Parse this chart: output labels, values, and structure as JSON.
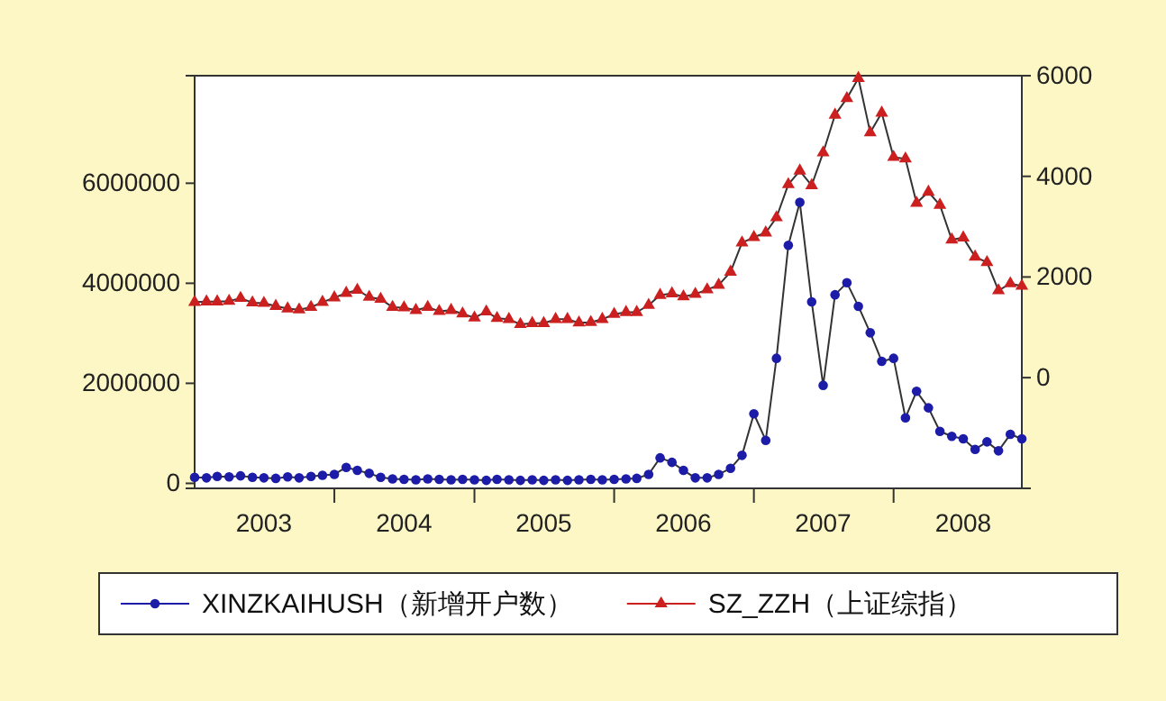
{
  "chart_data": {
    "type": "line",
    "x": [
      "2003-01",
      "2003-02",
      "2003-03",
      "2003-04",
      "2003-05",
      "2003-06",
      "2003-07",
      "2003-08",
      "2003-09",
      "2003-10",
      "2003-11",
      "2003-12",
      "2004-01",
      "2004-02",
      "2004-03",
      "2004-04",
      "2004-05",
      "2004-06",
      "2004-07",
      "2004-08",
      "2004-09",
      "2004-10",
      "2004-11",
      "2004-12",
      "2005-01",
      "2005-02",
      "2005-03",
      "2005-04",
      "2005-05",
      "2005-06",
      "2005-07",
      "2005-08",
      "2005-09",
      "2005-10",
      "2005-11",
      "2005-12",
      "2006-01",
      "2006-02",
      "2006-03",
      "2006-04",
      "2006-05",
      "2006-06",
      "2006-07",
      "2006-08",
      "2006-09",
      "2006-10",
      "2006-11",
      "2006-12",
      "2007-01",
      "2007-02",
      "2007-03",
      "2007-04",
      "2007-05",
      "2007-06",
      "2007-07",
      "2007-08",
      "2007-09",
      "2007-10",
      "2007-11",
      "2007-12",
      "2008-01",
      "2008-02",
      "2008-03",
      "2008-04",
      "2008-05",
      "2008-06",
      "2008-07",
      "2008-08",
      "2008-09",
      "2008-10",
      "2008-11",
      "2008-12"
    ],
    "series": [
      {
        "name": "XINZKAIHUSH（新增开户数）",
        "color": "#1c1ca8",
        "marker": "circle",
        "values": [
          120000,
          110000,
          140000,
          130000,
          150000,
          120000,
          110000,
          100000,
          130000,
          110000,
          140000,
          160000,
          180000,
          320000,
          260000,
          200000,
          120000,
          90000,
          80000,
          70000,
          90000,
          80000,
          70000,
          80000,
          70000,
          60000,
          80000,
          70000,
          60000,
          70000,
          60000,
          70000,
          60000,
          70000,
          80000,
          70000,
          80000,
          90000,
          100000,
          180000,
          510000,
          420000,
          260000,
          110000,
          110000,
          180000,
          300000,
          560000,
          1390000,
          860000,
          2500000,
          4760000,
          5620000,
          3630000,
          1960000,
          3770000,
          4010000,
          3540000,
          3010000,
          2440000,
          2500000,
          1310000,
          1840000,
          1510000,
          1040000,
          940000,
          890000,
          680000,
          830000,
          650000,
          980000,
          890000
        ]
      },
      {
        "name": "SZ_ZZH（上证综指）",
        "color": "#cc2020",
        "marker": "triangle",
        "axis": "y2",
        "values": [
          1500,
          1510,
          1510,
          1520,
          1580,
          1490,
          1480,
          1420,
          1370,
          1350,
          1400,
          1500,
          1590,
          1680,
          1740,
          1600,
          1560,
          1400,
          1390,
          1340,
          1400,
          1320,
          1340,
          1270,
          1190,
          1310,
          1180,
          1160,
          1060,
          1080,
          1080,
          1160,
          1160,
          1090,
          1100,
          1160,
          1260,
          1300,
          1300,
          1440,
          1640,
          1670,
          1610,
          1660,
          1750,
          1840,
          2100,
          2680,
          2790,
          2880,
          3180,
          3840,
          4110,
          3820,
          4470,
          5220,
          5550,
          5950,
          4870,
          5260,
          4380,
          4350,
          3470,
          3690,
          3430,
          2740,
          2780,
          2400,
          2290,
          1730,
          1870,
          1820
        ]
      }
    ],
    "xlim": [
      "2003-01",
      "2008-12"
    ],
    "xticks": [
      {
        "value": "2003-07",
        "label": "2003"
      },
      {
        "value": "2004-01",
        "label": null
      },
      {
        "value": "2004-07",
        "label": "2004"
      },
      {
        "value": "2005-01",
        "label": null
      },
      {
        "value": "2005-07",
        "label": "2005"
      },
      {
        "value": "2006-01",
        "label": null
      },
      {
        "value": "2006-07",
        "label": "2006"
      },
      {
        "value": "2007-01",
        "label": null
      },
      {
        "value": "2007-07",
        "label": "2007"
      },
      {
        "value": "2008-01",
        "label": null
      },
      {
        "value": "2008-07",
        "label": "2008"
      }
    ],
    "ylim": [
      -100000,
      8150000
    ],
    "yticks": [
      0,
      2000000,
      4000000,
      6000000
    ],
    "y2lim": [
      -2200,
      6000
    ],
    "y2ticks": [
      0,
      2000,
      4000,
      6000
    ],
    "grid": false,
    "legend": "bottom",
    "line_style": "solid"
  }
}
